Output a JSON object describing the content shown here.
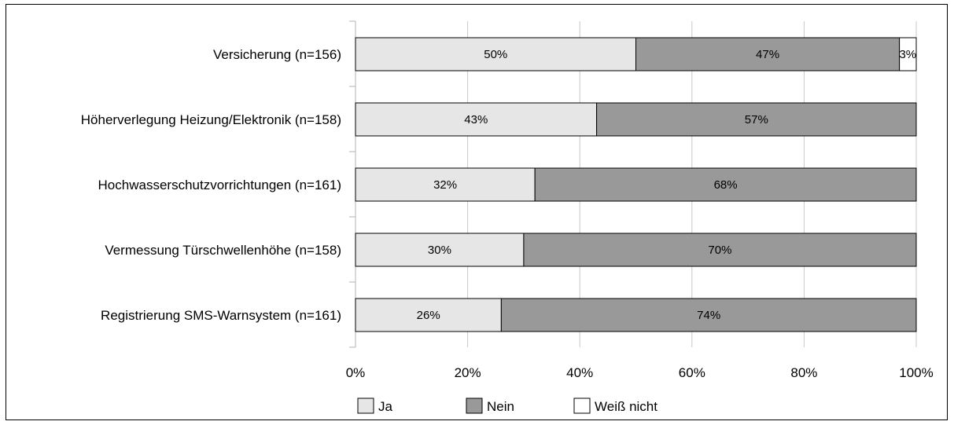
{
  "chart_data": {
    "type": "bar",
    "orientation": "horizontal",
    "stacked": true,
    "percent_stacked": true,
    "categories": [
      "Versicherung (n=156)",
      "Höherverlegung Heizung/Elektronik (n=158)",
      "Hochwasserschutzvorrichtungen (n=161)",
      "Vermessung Türschwellenhöhe (n=158)",
      "Registrierung SMS-Warnsystem (n=161)"
    ],
    "series": [
      {
        "name": "Ja",
        "color": "#e6e6e6",
        "values": [
          50,
          43,
          32,
          30,
          26
        ],
        "labels": [
          "50%",
          "43%",
          "32%",
          "30%",
          "26%"
        ]
      },
      {
        "name": "Nein",
        "color": "#999999",
        "values": [
          47,
          57,
          68,
          70,
          74
        ],
        "labels": [
          "47%",
          "57%",
          "68%",
          "70%",
          "74%"
        ]
      },
      {
        "name": "Weiß nicht",
        "color": "#ffffff",
        "values": [
          3,
          0,
          0,
          0,
          0
        ],
        "labels": [
          "3%",
          "",
          "",
          "",
          ""
        ]
      }
    ],
    "xlim": [
      0,
      100
    ],
    "x_ticks": [
      0,
      20,
      40,
      60,
      80,
      100
    ],
    "x_tick_labels": [
      "0%",
      "20%",
      "40%",
      "60%",
      "80%",
      "100%"
    ],
    "grid": "vertical",
    "legend_position": "bottom"
  }
}
